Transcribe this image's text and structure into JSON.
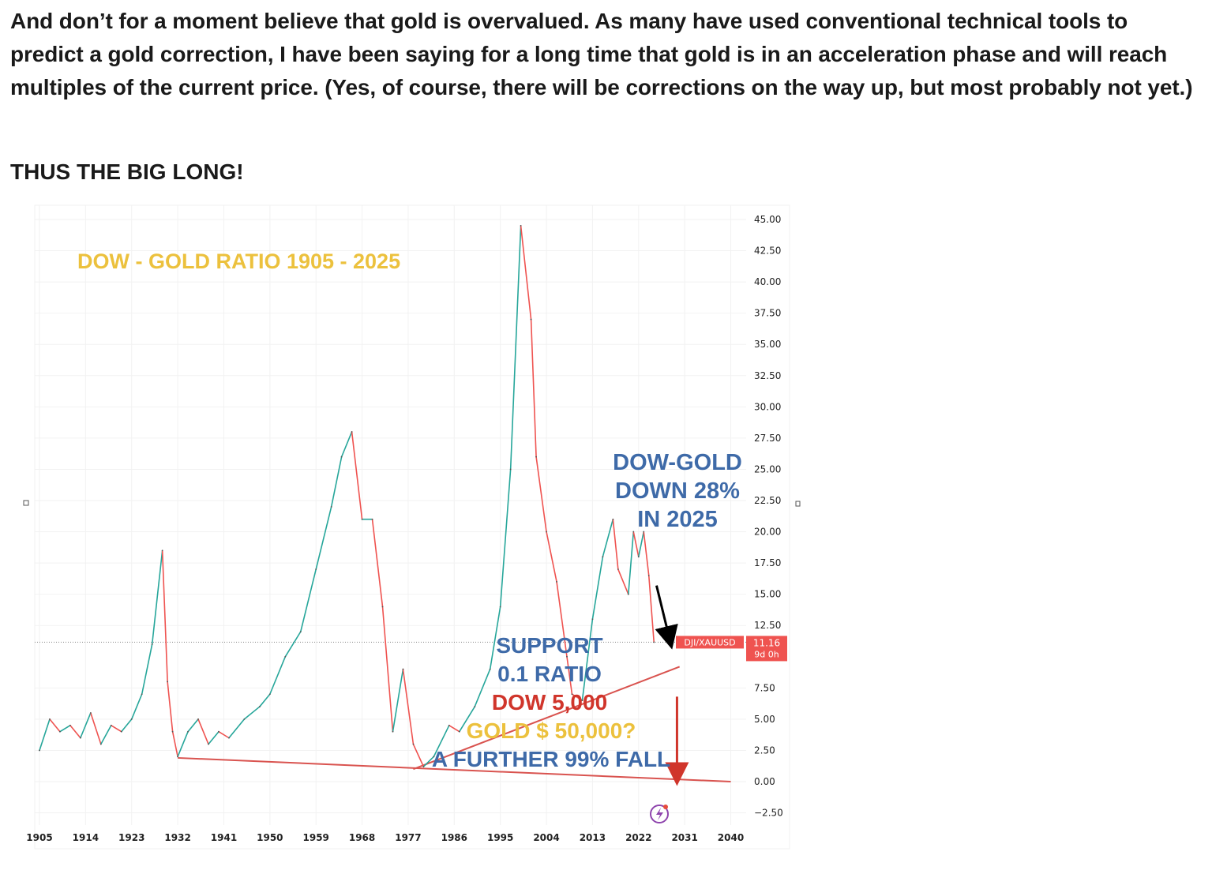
{
  "article": {
    "paragraph": "And don’t for a moment believe that gold is overvalued. As many have used conventional technical tools to predict a gold correction, I have been saying for a long time that gold is in an acceleration phase and will reach multiples of the current price. (Yes, of course, there will be corrections on the way up, but most probably not yet.)",
    "heading": "THUS THE BIG LONG!"
  },
  "chart_data": {
    "type": "line",
    "title": "DOW - GOLD RATIO 1905 - 2025",
    "xlabel": "",
    "ylabel": "",
    "xlim": [
      1905,
      2041
    ],
    "ylim": [
      -2.5,
      45
    ],
    "x_ticks": [
      "1905",
      "1914",
      "1923",
      "1932",
      "1941",
      "1950",
      "1959",
      "1968",
      "1977",
      "1986",
      "1995",
      "2004",
      "2013",
      "2022",
      "2031",
      "2040"
    ],
    "y_ticks": [
      "45.00",
      "42.50",
      "40.00",
      "37.50",
      "35.00",
      "32.50",
      "30.00",
      "27.50",
      "25.00",
      "22.50",
      "20.00",
      "17.50",
      "15.00",
      "12.50",
      "7.50",
      "5.00",
      "2.50",
      "0.00",
      "−2.50"
    ],
    "grid": true,
    "series": [
      {
        "name": "DJI/XAUUSD",
        "color": "#26a69a",
        "down_color": "#ef5350",
        "x": [
          1905,
          1907,
          1909,
          1911,
          1913,
          1915,
          1917,
          1919,
          1921,
          1923,
          1925,
          1927,
          1929,
          1930,
          1931,
          1932,
          1934,
          1936,
          1938,
          1940,
          1942,
          1945,
          1948,
          1950,
          1953,
          1956,
          1959,
          1962,
          1964,
          1966,
          1968,
          1970,
          1972,
          1974,
          1976,
          1978,
          1980,
          1982,
          1985,
          1987,
          1990,
          1993,
          1995,
          1997,
          1999,
          2001,
          2002,
          2004,
          2006,
          2008,
          2009,
          2011,
          2013,
          2015,
          2017,
          2018,
          2020,
          2021,
          2022,
          2023,
          2024,
          2025
        ],
        "y": [
          2.5,
          5.0,
          4.0,
          4.5,
          3.5,
          5.5,
          3.0,
          4.5,
          4.0,
          5.0,
          7.0,
          11.0,
          18.5,
          8.0,
          4.0,
          2.0,
          4.0,
          5.0,
          3.0,
          4.0,
          3.5,
          5.0,
          6.0,
          7.0,
          10.0,
          12.0,
          17.0,
          22.0,
          26.0,
          28.0,
          21.0,
          21.0,
          14.0,
          4.0,
          9.0,
          3.0,
          1.2,
          2.0,
          4.5,
          4.0,
          6.0,
          9.0,
          14.0,
          25.0,
          44.5,
          37.0,
          26.0,
          20.0,
          16.0,
          10.0,
          7.0,
          6.5,
          13.0,
          18.0,
          21.0,
          17.0,
          15.0,
          20.0,
          18.0,
          20.0,
          16.5,
          11.16
        ]
      }
    ],
    "price_label": {
      "symbol": "DJI/XAUUSD",
      "value": "11.16",
      "sub": "9d 0h"
    },
    "trendlines": [
      {
        "name": "lower support line",
        "x": [
          1932,
          2040
        ],
        "y": [
          1.9,
          0.0
        ],
        "color": "#d9534f"
      },
      {
        "name": "rising line",
        "x": [
          1978,
          2030
        ],
        "y": [
          1.0,
          9.2
        ],
        "color": "#d9534f"
      }
    ],
    "arrows": [
      {
        "name": "black arrow",
        "x": [
          2025.5,
          2028
        ],
        "y": [
          15.7,
          11.5
        ],
        "color": "#000000"
      },
      {
        "name": "red arrow",
        "x": [
          2029.5,
          2029.5
        ],
        "y": [
          6.8,
          0.6
        ],
        "color": "#d0352b"
      }
    ],
    "annotations": [
      {
        "text": "DOW-GOLD",
        "color": "#3e6aa8"
      },
      {
        "text": "DOWN 28%",
        "color": "#3e6aa8"
      },
      {
        "text": "IN 2025",
        "color": "#3e6aa8"
      },
      {
        "text": "SUPPORT",
        "color": "#3e6aa8"
      },
      {
        "text": "0.1 RATIO",
        "color": "#3e6aa8"
      },
      {
        "text": "DOW 5,000",
        "color": "#d0352b"
      },
      {
        "text": "GOLD $ 50,000?",
        "color": "#ecc13d"
      },
      {
        "text": "A FURTHER 99% FALL",
        "color": "#3e6aa8"
      }
    ],
    "title_color": "#ecc13d"
  }
}
